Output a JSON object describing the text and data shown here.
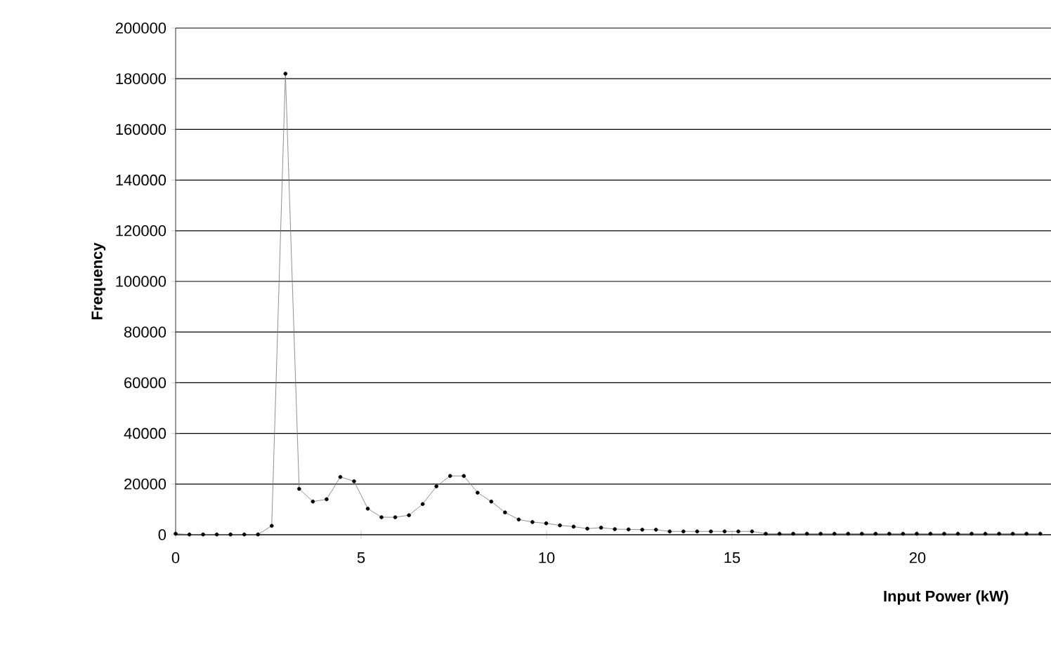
{
  "chart_data": {
    "type": "line",
    "xlabel": "Input Power (kW)",
    "ylabel": "Frequency",
    "x": [
      0,
      0.37,
      0.74,
      1.11,
      1.48,
      1.85,
      2.22,
      2.59,
      2.96,
      3.33,
      3.7,
      4.07,
      4.44,
      4.81,
      5.18,
      5.55,
      5.92,
      6.29,
      6.66,
      7.03,
      7.4,
      7.77,
      8.14,
      8.51,
      8.88,
      9.25,
      9.62,
      9.99,
      10.36,
      10.73,
      11.1,
      11.47,
      11.84,
      12.21,
      12.58,
      12.95,
      13.32,
      13.69,
      14.06,
      14.43,
      14.8,
      15.17,
      15.54,
      15.91,
      16.28,
      16.65,
      17.02,
      17.39,
      17.76,
      18.13,
      18.5,
      18.87,
      19.24,
      19.61,
      19.98,
      20.35,
      20.72,
      21.09,
      21.46,
      21.83,
      22.2,
      22.57,
      22.94,
      23.31
    ],
    "series": [
      {
        "color": "#000000",
        "values": [
          400,
          100,
          100,
          100,
          100,
          100,
          100,
          3500,
          182000,
          18100,
          13100,
          14000,
          22800,
          21100,
          10300,
          6900,
          6900,
          7700,
          12100,
          19100,
          23200,
          23200,
          16600,
          13100,
          8800,
          6000,
          5000,
          4500,
          3700,
          3200,
          2400,
          2800,
          2200,
          2100,
          2000,
          2000,
          1300,
          1300,
          1300,
          1300,
          1300,
          1300,
          1300,
          400,
          400,
          400,
          400,
          400,
          400,
          400,
          400,
          400,
          400,
          400,
          400,
          400,
          400,
          400,
          400,
          400,
          400,
          400,
          400,
          400
        ]
      }
    ],
    "xlim": [
      0,
      23.6
    ],
    "ylim": [
      0,
      200000
    ],
    "xticks": [
      0,
      5,
      10,
      15,
      20
    ],
    "yticks": [
      0,
      20000,
      40000,
      60000,
      80000,
      100000,
      120000,
      140000,
      160000,
      180000,
      200000
    ],
    "grid": "y",
    "marker": "circle",
    "line_style": "solid"
  }
}
